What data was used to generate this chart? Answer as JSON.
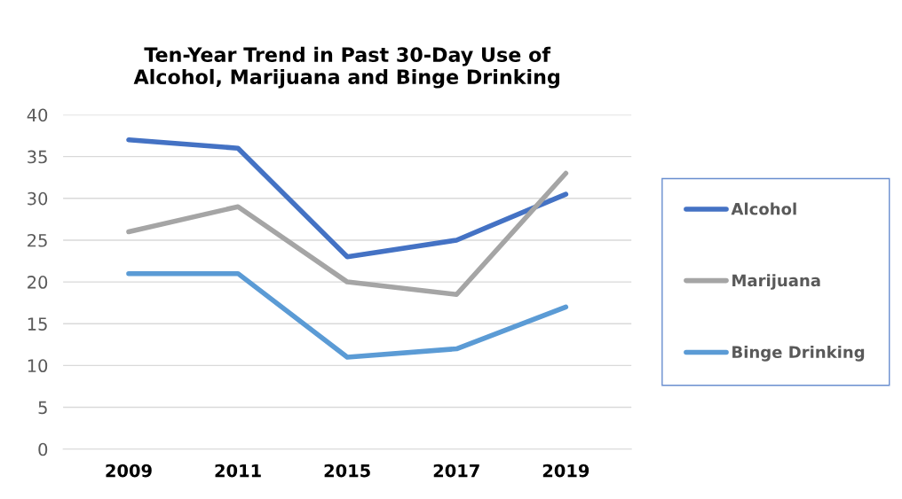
{
  "chart_data": {
    "type": "line",
    "title": "Ten-Year Trend in Past 30-Day Use of\nAlcohol, Marijuana and Binge Drinking",
    "categories": [
      "2009",
      "2011",
      "2015",
      "2017",
      "2019"
    ],
    "series": [
      {
        "name": "Alcohol",
        "color": "#4472c4",
        "values": [
          37,
          36,
          23,
          25,
          30.5
        ]
      },
      {
        "name": "Marijuana",
        "color": "#a5a5a5",
        "values": [
          26,
          29,
          20,
          18.5,
          33
        ]
      },
      {
        "name": "Binge Drinking",
        "color": "#5b9bd5",
        "values": [
          21,
          21,
          11,
          12,
          17
        ]
      }
    ],
    "ylim": [
      0,
      40
    ],
    "yticks": [
      0,
      5,
      10,
      15,
      20,
      25,
      30,
      35,
      40
    ],
    "grid": "y",
    "legend": "right",
    "marker": "none",
    "line_style": "solid"
  }
}
